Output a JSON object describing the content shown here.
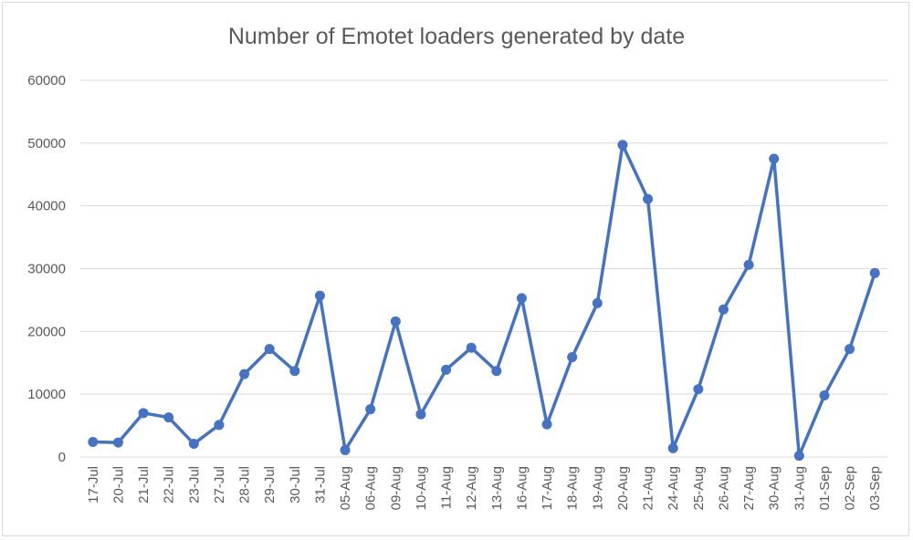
{
  "chart_data": {
    "type": "line",
    "title": "Number of Emotet loaders generated by date",
    "xlabel": "",
    "ylabel": "",
    "ylim": [
      0,
      60000
    ],
    "yticks": [
      0,
      10000,
      20000,
      30000,
      40000,
      50000,
      60000
    ],
    "grid": true,
    "legend": "none",
    "categories": [
      "17-Jul",
      "20-Jul",
      "21-Jul",
      "22-Jul",
      "23-Jul",
      "27-Jul",
      "28-Jul",
      "29-Jul",
      "30-Jul",
      "31-Jul",
      "05-Aug",
      "06-Aug",
      "09-Aug",
      "10-Aug",
      "11-Aug",
      "12-Aug",
      "13-Aug",
      "16-Aug",
      "17-Aug",
      "18-Aug",
      "19-Aug",
      "20-Aug",
      "21-Aug",
      "24-Aug",
      "25-Aug",
      "26-Aug",
      "27-Aug",
      "30-Aug",
      "31-Aug",
      "01-Sep",
      "02-Sep",
      "03-Sep"
    ],
    "series": [
      {
        "values": [
          2400,
          2300,
          7000,
          6300,
          2100,
          5100,
          13200,
          17200,
          13700,
          25700,
          1100,
          7600,
          21600,
          6800,
          13900,
          17400,
          13700,
          25300,
          5200,
          15900,
          24500,
          49700,
          41100,
          1400,
          10800,
          23500,
          30600,
          47500,
          200,
          9800,
          17200,
          29300
        ],
        "color": "#4472c4"
      }
    ]
  }
}
